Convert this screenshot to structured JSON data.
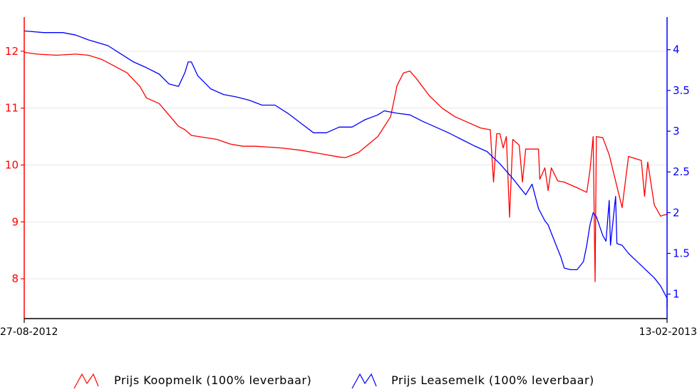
{
  "chart_data": {
    "type": "line",
    "x": {
      "start_label": "27-08-2012",
      "end_label": "13-02-2013",
      "tick_labels": [
        "27-08-2012",
        "13-02-2013"
      ]
    },
    "y_left": {
      "ylim": [
        7.3,
        12.6
      ],
      "ticks": [
        "8",
        "9",
        "10",
        "11",
        "12"
      ],
      "color": "#ff0000"
    },
    "y_right": {
      "ylim": [
        0.7,
        4.4
      ],
      "ticks": [
        "1",
        "1.5",
        "2",
        "2.5",
        "3",
        "3.5",
        "4"
      ],
      "color": "#0000ff"
    },
    "grid": true,
    "legend_position": "bottom",
    "series": [
      {
        "name": "Prijs Koopmelk (100% leverbaar)",
        "axis": "left",
        "color": "#ff0000",
        "points": [
          [
            0,
            11.98
          ],
          [
            0.02,
            11.95
          ],
          [
            0.05,
            11.93
          ],
          [
            0.08,
            11.95
          ],
          [
            0.1,
            11.93
          ],
          [
            0.12,
            11.86
          ],
          [
            0.14,
            11.74
          ],
          [
            0.16,
            11.62
          ],
          [
            0.18,
            11.38
          ],
          [
            0.19,
            11.18
          ],
          [
            0.21,
            11.08
          ],
          [
            0.225,
            10.88
          ],
          [
            0.24,
            10.68
          ],
          [
            0.25,
            10.62
          ],
          [
            0.26,
            10.52
          ],
          [
            0.3,
            10.45
          ],
          [
            0.32,
            10.37
          ],
          [
            0.34,
            10.33
          ],
          [
            0.36,
            10.33
          ],
          [
            0.4,
            10.3
          ],
          [
            0.43,
            10.26
          ],
          [
            0.46,
            10.2
          ],
          [
            0.49,
            10.14
          ],
          [
            0.5,
            10.13
          ],
          [
            0.52,
            10.22
          ],
          [
            0.55,
            10.5
          ],
          [
            0.57,
            10.85
          ],
          [
            0.58,
            11.4
          ],
          [
            0.59,
            11.62
          ],
          [
            0.6,
            11.65
          ],
          [
            0.61,
            11.52
          ],
          [
            0.63,
            11.22
          ],
          [
            0.65,
            11.0
          ],
          [
            0.67,
            10.85
          ],
          [
            0.69,
            10.75
          ],
          [
            0.71,
            10.65
          ],
          [
            0.725,
            10.62
          ],
          [
            0.73,
            9.7
          ],
          [
            0.735,
            10.55
          ],
          [
            0.74,
            10.55
          ],
          [
            0.745,
            10.3
          ],
          [
            0.75,
            10.5
          ],
          [
            0.755,
            9.08
          ],
          [
            0.76,
            10.45
          ],
          [
            0.77,
            10.35
          ],
          [
            0.775,
            9.7
          ],
          [
            0.78,
            10.28
          ],
          [
            0.8,
            10.28
          ],
          [
            0.802,
            9.75
          ],
          [
            0.81,
            9.95
          ],
          [
            0.815,
            9.55
          ],
          [
            0.82,
            9.95
          ],
          [
            0.83,
            9.72
          ],
          [
            0.84,
            9.7
          ],
          [
            0.86,
            9.6
          ],
          [
            0.875,
            9.52
          ],
          [
            0.88,
            9.9
          ],
          [
            0.885,
            10.5
          ],
          [
            0.888,
            7.95
          ],
          [
            0.89,
            10.5
          ],
          [
            0.9,
            10.48
          ],
          [
            0.91,
            10.18
          ],
          [
            0.93,
            9.25
          ],
          [
            0.94,
            10.15
          ],
          [
            0.96,
            10.08
          ],
          [
            0.965,
            9.45
          ],
          [
            0.97,
            10.05
          ],
          [
            0.98,
            9.3
          ],
          [
            0.99,
            9.1
          ],
          [
            0.995,
            9.12
          ],
          [
            1.0,
            9.13
          ]
        ]
      },
      {
        "name": "Prijs Leasemelk (100% leverbaar)",
        "axis": "right",
        "color": "#0000ff",
        "points": [
          [
            0,
            4.23
          ],
          [
            0.03,
            4.21
          ],
          [
            0.06,
            4.21
          ],
          [
            0.08,
            4.18
          ],
          [
            0.1,
            4.12
          ],
          [
            0.13,
            4.05
          ],
          [
            0.15,
            3.95
          ],
          [
            0.17,
            3.85
          ],
          [
            0.19,
            3.78
          ],
          [
            0.21,
            3.7
          ],
          [
            0.225,
            3.58
          ],
          [
            0.24,
            3.55
          ],
          [
            0.25,
            3.72
          ],
          [
            0.255,
            3.85
          ],
          [
            0.26,
            3.85
          ],
          [
            0.27,
            3.68
          ],
          [
            0.29,
            3.52
          ],
          [
            0.31,
            3.45
          ],
          [
            0.33,
            3.42
          ],
          [
            0.35,
            3.38
          ],
          [
            0.37,
            3.32
          ],
          [
            0.39,
            3.32
          ],
          [
            0.41,
            3.22
          ],
          [
            0.43,
            3.1
          ],
          [
            0.45,
            2.98
          ],
          [
            0.47,
            2.98
          ],
          [
            0.49,
            3.05
          ],
          [
            0.51,
            3.05
          ],
          [
            0.53,
            3.14
          ],
          [
            0.55,
            3.2
          ],
          [
            0.56,
            3.25
          ],
          [
            0.58,
            3.22
          ],
          [
            0.6,
            3.2
          ],
          [
            0.62,
            3.12
          ],
          [
            0.64,
            3.05
          ],
          [
            0.66,
            2.98
          ],
          [
            0.68,
            2.9
          ],
          [
            0.7,
            2.82
          ],
          [
            0.72,
            2.75
          ],
          [
            0.74,
            2.6
          ],
          [
            0.76,
            2.42
          ],
          [
            0.77,
            2.32
          ],
          [
            0.78,
            2.22
          ],
          [
            0.79,
            2.35
          ],
          [
            0.8,
            2.05
          ],
          [
            0.81,
            1.9
          ],
          [
            0.815,
            1.85
          ],
          [
            0.82,
            1.75
          ],
          [
            0.825,
            1.65
          ],
          [
            0.835,
            1.45
          ],
          [
            0.84,
            1.32
          ],
          [
            0.85,
            1.3
          ],
          [
            0.86,
            1.3
          ],
          [
            0.87,
            1.4
          ],
          [
            0.875,
            1.6
          ],
          [
            0.88,
            1.85
          ],
          [
            0.885,
            2.0
          ],
          [
            0.89,
            1.95
          ],
          [
            0.9,
            1.72
          ],
          [
            0.905,
            1.65
          ],
          [
            0.91,
            2.15
          ],
          [
            0.912,
            1.6
          ],
          [
            0.92,
            2.2
          ],
          [
            0.922,
            1.62
          ],
          [
            0.93,
            1.6
          ],
          [
            0.94,
            1.5
          ],
          [
            0.96,
            1.35
          ],
          [
            0.98,
            1.2
          ],
          [
            0.99,
            1.1
          ],
          [
            1.0,
            0.95
          ],
          [
            1.0,
            0.82
          ]
        ]
      }
    ]
  },
  "legend": {
    "items": [
      {
        "label": "Prijs Koopmelk (100% leverbaar)",
        "color": "#ff0000"
      },
      {
        "label": "Prijs Leasemelk (100% leverbaar)",
        "color": "#0000ff"
      }
    ]
  }
}
